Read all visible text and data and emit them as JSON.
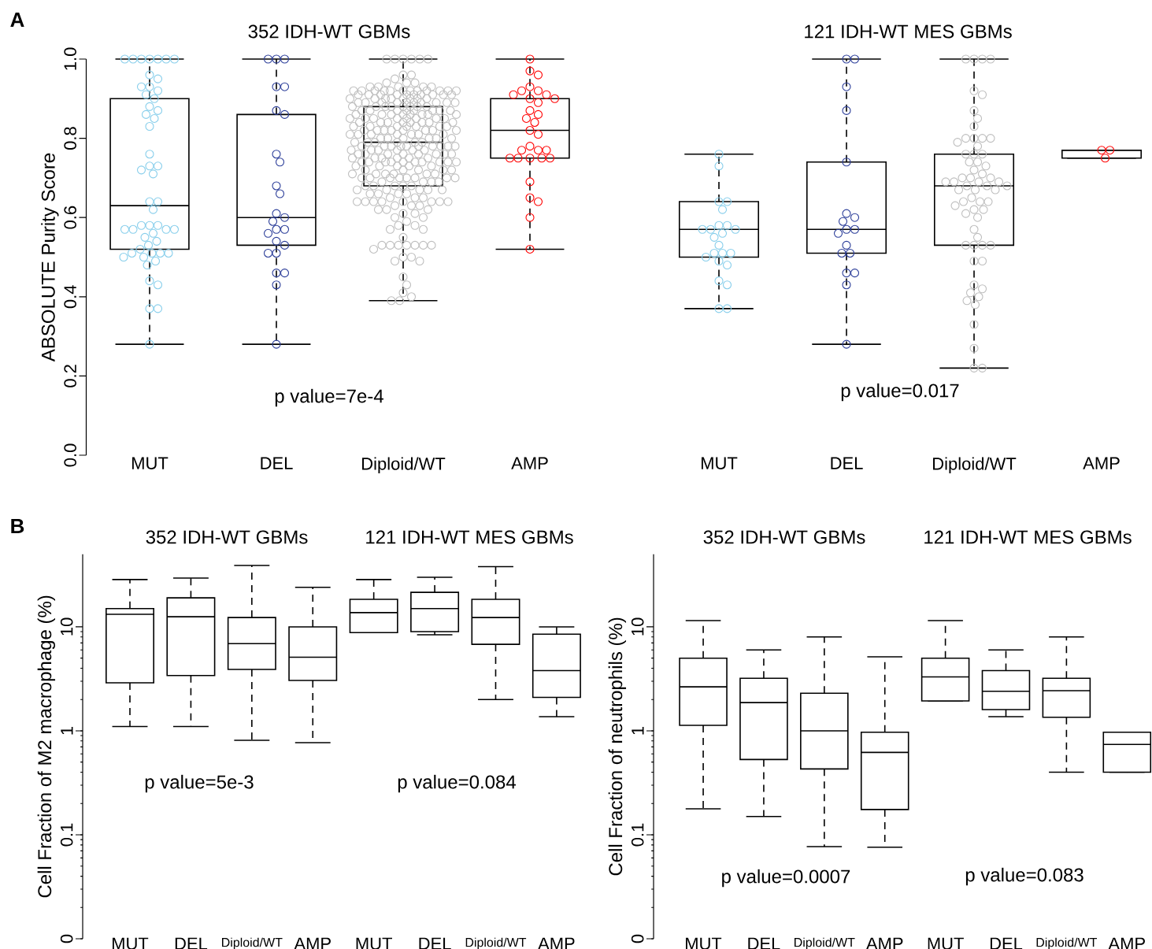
{
  "chart_data": [
    {
      "type": "box",
      "title": "352 IDH-WT GBMs",
      "ylabel": "ABSOLUTE Purity Score",
      "annotations": [
        "p value=7e-4",
        "A"
      ],
      "categories": [
        "MUT",
        "DEL",
        "Diploid/WT",
        "AMP"
      ],
      "ylim": [
        0,
        1
      ],
      "yticks": [
        {
          "value": 0,
          "label": "0.0"
        },
        0.2,
        0.4,
        0.6,
        0.8,
        {
          "value": 1,
          "label": "1.0"
        }
      ],
      "marker": "circle",
      "boxes": [
        {
          "low": 0.28,
          "q1": 0.52,
          "median": 0.63,
          "q3": 0.9,
          "high": 1
        },
        {
          "low": 0.28,
          "q1": 0.53,
          "median": 0.6,
          "q3": 0.86,
          "high": 1
        },
        {
          "low": 0.39,
          "q1": 0.68,
          "median": 0.79,
          "q3": 0.88,
          "high": 1
        },
        {
          "low": 0.52,
          "q1": 0.75,
          "median": 0.82,
          "q3": 0.9,
          "high": 1
        }
      ],
      "series": [
        {
          "type": "scatter",
          "color": "#87ceeb",
          "x": [
            "MUT",
            "MUT",
            "MUT",
            "MUT",
            "MUT",
            "MUT",
            "MUT",
            "MUT",
            "MUT",
            "MUT",
            "MUT",
            "MUT",
            "MUT",
            "MUT",
            "MUT",
            "MUT",
            "MUT",
            "MUT",
            "MUT",
            "MUT",
            "MUT",
            "MUT",
            "MUT",
            "MUT",
            "MUT",
            "MUT",
            "MUT",
            "MUT",
            "MUT",
            "MUT",
            "MUT",
            "MUT",
            "MUT",
            "MUT",
            "MUT",
            "MUT",
            "MUT",
            "MUT",
            "MUT",
            "MUT",
            "MUT",
            "MUT",
            "MUT",
            "MUT",
            "MUT",
            "MUT",
            "MUT",
            "MUT",
            "MUT",
            "MUT",
            "MUT",
            "MUT"
          ],
          "values": [
            1,
            1,
            1,
            1,
            1,
            1,
            1,
            0.96,
            0.95,
            0.93,
            0.93,
            0.92,
            0.91,
            0.9,
            0.88,
            0.87,
            0.86,
            0.85,
            0.83,
            0.76,
            0.73,
            0.73,
            0.72,
            0.71,
            0.64,
            0.64,
            0.62,
            0.58,
            0.58,
            0.58,
            0.57,
            0.57,
            0.57,
            0.57,
            0.56,
            0.55,
            0.54,
            0.53,
            0.52,
            0.51,
            0.51,
            0.51,
            0.51,
            0.5,
            0.5,
            0.49,
            0.48,
            0.44,
            0.43,
            0.37,
            0.37,
            0.28
          ]
        },
        {
          "type": "scatter",
          "color": "#2b3d99",
          "x": [
            "DEL",
            "DEL",
            "DEL",
            "DEL",
            "DEL",
            "DEL",
            "DEL",
            "DEL",
            "DEL",
            "DEL",
            "DEL",
            "DEL",
            "DEL",
            "DEL",
            "DEL",
            "DEL",
            "DEL",
            "DEL",
            "DEL",
            "DEL",
            "DEL",
            "DEL",
            "DEL",
            "DEL",
            "DEL"
          ],
          "values": [
            1,
            1,
            1,
            0.93,
            0.93,
            0.87,
            0.86,
            0.76,
            0.74,
            0.68,
            0.66,
            0.61,
            0.6,
            0.59,
            0.57,
            0.57,
            0.56,
            0.54,
            0.53,
            0.51,
            0.51,
            0.46,
            0.46,
            0.43,
            0.28
          ]
        },
        {
          "type": "scatter",
          "color": "#bebebe",
          "x": [
            "Diploid/WT",
            "Diploid/WT",
            "Diploid/WT",
            "Diploid/WT",
            "Diploid/WT",
            "Diploid/WT",
            "Diploid/WT",
            "Diploid/WT",
            "Diploid/WT",
            "Diploid/WT",
            "Diploid/WT",
            "Diploid/WT",
            "Diploid/WT",
            "Diploid/WT",
            "Diploid/WT",
            "Diploid/WT",
            "Diploid/WT",
            "Diploid/WT",
            "Diploid/WT",
            "Diploid/WT",
            "Diploid/WT",
            "Diploid/WT",
            "Diploid/WT",
            "Diploid/WT",
            "Diploid/WT",
            "Diploid/WT",
            "Diploid/WT",
            "Diploid/WT",
            "Diploid/WT",
            "Diploid/WT",
            "Diploid/WT",
            "Diploid/WT",
            "Diploid/WT",
            "Diploid/WT",
            "Diploid/WT",
            "Diploid/WT",
            "Diploid/WT",
            "Diploid/WT",
            "Diploid/WT",
            "Diploid/WT",
            "Diploid/WT",
            "Diploid/WT",
            "Diploid/WT",
            "Diploid/WT",
            "Diploid/WT",
            "Diploid/WT",
            "Diploid/WT",
            "Diploid/WT",
            "Diploid/WT",
            "Diploid/WT",
            "Diploid/WT",
            "Diploid/WT",
            "Diploid/WT",
            "Diploid/WT",
            "Diploid/WT",
            "Diploid/WT",
            "Diploid/WT",
            "Diploid/WT",
            "Diploid/WT",
            "Diploid/WT",
            "Diploid/WT",
            "Diploid/WT",
            "Diploid/WT",
            "Diploid/WT",
            "Diploid/WT",
            "Diploid/WT",
            "Diploid/WT",
            "Diploid/WT",
            "Diploid/WT",
            "Diploid/WT",
            "Diploid/WT",
            "Diploid/WT",
            "Diploid/WT",
            "Diploid/WT",
            "Diploid/WT",
            "Diploid/WT",
            "Diploid/WT",
            "Diploid/WT",
            "Diploid/WT",
            "Diploid/WT",
            "Diploid/WT",
            "Diploid/WT",
            "Diploid/WT",
            "Diploid/WT",
            "Diploid/WT",
            "Diploid/WT",
            "Diploid/WT",
            "Diploid/WT",
            "Diploid/WT",
            "Diploid/WT",
            "Diploid/WT",
            "Diploid/WT",
            "Diploid/WT",
            "Diploid/WT",
            "Diploid/WT",
            "Diploid/WT",
            "Diploid/WT",
            "Diploid/WT",
            "Diploid/WT",
            "Diploid/WT",
            "Diploid/WT",
            "Diploid/WT",
            "Diploid/WT",
            "Diploid/WT",
            "Diploid/WT",
            "Diploid/WT",
            "Diploid/WT",
            "Diploid/WT",
            "Diploid/WT",
            "Diploid/WT",
            "Diploid/WT",
            "Diploid/WT",
            "Diploid/WT",
            "Diploid/WT",
            "Diploid/WT",
            "Diploid/WT",
            "Diploid/WT",
            "Diploid/WT",
            "Diploid/WT",
            "Diploid/WT",
            "Diploid/WT",
            "Diploid/WT",
            "Diploid/WT",
            "Diploid/WT",
            "Diploid/WT",
            "Diploid/WT",
            "Diploid/WT",
            "Diploid/WT",
            "Diploid/WT",
            "Diploid/WT",
            "Diploid/WT",
            "Diploid/WT",
            "Diploid/WT",
            "Diploid/WT",
            "Diploid/WT",
            "Diploid/WT",
            "Diploid/WT",
            "Diploid/WT",
            "Diploid/WT",
            "Diploid/WT",
            "Diploid/WT",
            "Diploid/WT",
            "Diploid/WT",
            "Diploid/WT",
            "Diploid/WT",
            "Diploid/WT",
            "Diploid/WT",
            "Diploid/WT",
            "Diploid/WT",
            "Diploid/WT",
            "Diploid/WT",
            "Diploid/WT",
            "Diploid/WT",
            "Diploid/WT",
            "Diploid/WT",
            "Diploid/WT",
            "Diploid/WT",
            "Diploid/WT",
            "Diploid/WT",
            "Diploid/WT",
            "Diploid/WT",
            "Diploid/WT",
            "Diploid/WT",
            "Diploid/WT",
            "Diploid/WT",
            "Diploid/WT",
            "Diploid/WT",
            "Diploid/WT",
            "Diploid/WT",
            "Diploid/WT",
            "Diploid/WT",
            "Diploid/WT",
            "Diploid/WT",
            "Diploid/WT",
            "Diploid/WT",
            "Diploid/WT",
            "Diploid/WT",
            "Diploid/WT",
            "Diploid/WT",
            "Diploid/WT",
            "Diploid/WT",
            "Diploid/WT",
            "Diploid/WT",
            "Diploid/WT",
            "Diploid/WT",
            "Diploid/WT",
            "Diploid/WT",
            "Diploid/WT",
            "Diploid/WT",
            "Diploid/WT",
            "Diploid/WT",
            "Diploid/WT",
            "Diploid/WT",
            "Diploid/WT",
            "Diploid/WT",
            "Diploid/WT",
            "Diploid/WT",
            "Diploid/WT",
            "Diploid/WT",
            "Diploid/WT",
            "Diploid/WT",
            "Diploid/WT",
            "Diploid/WT",
            "Diploid/WT",
            "Diploid/WT",
            "Diploid/WT",
            "Diploid/WT",
            "Diploid/WT",
            "Diploid/WT",
            "Diploid/WT",
            "Diploid/WT",
            "Diploid/WT",
            "Diploid/WT",
            "Diploid/WT",
            "Diploid/WT",
            "Diploid/WT",
            "Diploid/WT",
            "Diploid/WT",
            "Diploid/WT",
            "Diploid/WT",
            "Diploid/WT",
            "Diploid/WT",
            "Diploid/WT",
            "Diploid/WT",
            "Diploid/WT",
            "Diploid/WT",
            "Diploid/WT",
            "Diploid/WT",
            "Diploid/WT",
            "Diploid/WT",
            "Diploid/WT",
            "Diploid/WT",
            "Diploid/WT",
            "Diploid/WT",
            "Diploid/WT",
            "Diploid/WT",
            "Diploid/WT",
            "Diploid/WT",
            "Diploid/WT",
            "Diploid/WT",
            "Diploid/WT",
            "Diploid/WT",
            "Diploid/WT",
            "Diploid/WT",
            "Diploid/WT",
            "Diploid/WT",
            "Diploid/WT",
            "Diploid/WT",
            "Diploid/WT",
            "Diploid/WT",
            "Diploid/WT",
            "Diploid/WT",
            "Diploid/WT",
            "Diploid/WT",
            "Diploid/WT",
            "Diploid/WT",
            "Diploid/WT",
            "Diploid/WT"
          ],
          "values": [
            1,
            1,
            1,
            1,
            1,
            1,
            0.96,
            0.96,
            0.95,
            0.94,
            0.94,
            0.94,
            0.93,
            0.93,
            0.93,
            0.93,
            0.93,
            0.92,
            0.92,
            0.92,
            0.92,
            0.92,
            0.92,
            0.92,
            0.92,
            0.92,
            0.92,
            0.92,
            0.92,
            0.91,
            0.91,
            0.91,
            0.91,
            0.91,
            0.91,
            0.91,
            0.91,
            0.91,
            0.91,
            0.9,
            0.9,
            0.9,
            0.9,
            0.9,
            0.9,
            0.9,
            0.9,
            0.89,
            0.89,
            0.89,
            0.89,
            0.89,
            0.89,
            0.89,
            0.89,
            0.89,
            0.89,
            0.88,
            0.88,
            0.88,
            0.88,
            0.88,
            0.88,
            0.88,
            0.88,
            0.87,
            0.87,
            0.87,
            0.87,
            0.87,
            0.87,
            0.87,
            0.87,
            0.86,
            0.86,
            0.86,
            0.86,
            0.86,
            0.86,
            0.86,
            0.86,
            0.85,
            0.85,
            0.85,
            0.85,
            0.85,
            0.85,
            0.85,
            0.85,
            0.84,
            0.84,
            0.84,
            0.84,
            0.84,
            0.84,
            0.84,
            0.84,
            0.83,
            0.83,
            0.83,
            0.83,
            0.83,
            0.83,
            0.83,
            0.82,
            0.82,
            0.82,
            0.82,
            0.82,
            0.82,
            0.82,
            0.82,
            0.81,
            0.81,
            0.81,
            0.81,
            0.81,
            0.81,
            0.81,
            0.8,
            0.8,
            0.8,
            0.8,
            0.8,
            0.8,
            0.79,
            0.79,
            0.79,
            0.79,
            0.79,
            0.79,
            0.78,
            0.78,
            0.78,
            0.78,
            0.78,
            0.78,
            0.78,
            0.78,
            0.78,
            0.78,
            0.77,
            0.77,
            0.77,
            0.77,
            0.77,
            0.77,
            0.76,
            0.76,
            0.76,
            0.76,
            0.76,
            0.76,
            0.76,
            0.76,
            0.75,
            0.75,
            0.75,
            0.75,
            0.75,
            0.75,
            0.74,
            0.74,
            0.74,
            0.74,
            0.74,
            0.74,
            0.74,
            0.74,
            0.74,
            0.74,
            0.73,
            0.73,
            0.73,
            0.73,
            0.73,
            0.72,
            0.72,
            0.72,
            0.72,
            0.72,
            0.71,
            0.71,
            0.71,
            0.71,
            0.71,
            0.71,
            0.7,
            0.7,
            0.7,
            0.7,
            0.7,
            0.7,
            0.7,
            0.7,
            0.69,
            0.69,
            0.69,
            0.69,
            0.68,
            0.68,
            0.68,
            0.68,
            0.68,
            0.67,
            0.67,
            0.67,
            0.67,
            0.67,
            0.66,
            0.66,
            0.66,
            0.66,
            0.65,
            0.65,
            0.65,
            0.64,
            0.64,
            0.64,
            0.64,
            0.64,
            0.64,
            0.64,
            0.64,
            0.63,
            0.63,
            0.63,
            0.62,
            0.62,
            0.62,
            0.61,
            0.61,
            0.6,
            0.6,
            0.59,
            0.58,
            0.58,
            0.57,
            0.57,
            0.55,
            0.53,
            0.53,
            0.53,
            0.53,
            0.53,
            0.53,
            0.53,
            0.52,
            0.5,
            0.5,
            0.49,
            0.49,
            0.45,
            0.43,
            0.41,
            0.4,
            0.39,
            0.39
          ]
        },
        {
          "type": "scatter",
          "color": "#ff0000",
          "x": [
            "AMP",
            "AMP",
            "AMP",
            "AMP",
            "AMP",
            "AMP",
            "AMP",
            "AMP",
            "AMP",
            "AMP",
            "AMP",
            "AMP",
            "AMP",
            "AMP",
            "AMP",
            "AMP",
            "AMP",
            "AMP",
            "AMP",
            "AMP",
            "AMP",
            "AMP",
            "AMP",
            "AMP",
            "AMP",
            "AMP",
            "AMP",
            "AMP",
            "AMP",
            "AMP",
            "AMP"
          ],
          "values": [
            1,
            0.97,
            0.96,
            0.93,
            0.92,
            0.92,
            0.91,
            0.91,
            0.9,
            0.9,
            0.89,
            0.87,
            0.86,
            0.85,
            0.84,
            0.82,
            0.81,
            0.78,
            0.77,
            0.77,
            0.77,
            0.75,
            0.75,
            0.75,
            0.75,
            0.75,
            0.69,
            0.65,
            0.64,
            0.6,
            0.52
          ]
        }
      ]
    },
    {
      "type": "box",
      "title": "121 IDH-WT  MES GBMs",
      "annotations": [
        "p value=0.017"
      ],
      "categories": [
        "MUT",
        "DEL",
        "Diploid/WT",
        "AMP"
      ],
      "ylim": [
        0,
        1
      ],
      "tick_labels": "x",
      "marker": "circle",
      "boxes": [
        {
          "low": 0.37,
          "q1": 0.5,
          "median": 0.57,
          "q3": 0.64,
          "high": 0.76
        },
        {
          "low": 0.28,
          "q1": 0.51,
          "median": 0.57,
          "q3": 0.74,
          "high": 1
        },
        {
          "low": 0.22,
          "q1": 0.53,
          "median": 0.68,
          "q3": 0.76,
          "high": 1
        },
        {
          "low": 0.75,
          "q1": 0.75,
          "median": 0.77,
          "q3": 0.77,
          "high": 0.77
        }
      ],
      "series": [
        {
          "type": "scatter",
          "color": "#87ceeb",
          "x": [
            "MUT",
            "MUT",
            "MUT",
            "MUT",
            "MUT",
            "MUT",
            "MUT",
            "MUT",
            "MUT",
            "MUT",
            "MUT",
            "MUT",
            "MUT",
            "MUT",
            "MUT",
            "MUT",
            "MUT",
            "MUT",
            "MUT",
            "MUT",
            "MUT",
            "MUT",
            "MUT"
          ],
          "values": [
            0.76,
            0.73,
            0.64,
            0.64,
            0.62,
            0.58,
            0.58,
            0.57,
            0.57,
            0.57,
            0.56,
            0.55,
            0.53,
            0.51,
            0.51,
            0.51,
            0.5,
            0.49,
            0.48,
            0.44,
            0.43,
            0.37,
            0.37
          ]
        },
        {
          "type": "scatter",
          "color": "#2b3d99",
          "x": [
            "DEL",
            "DEL",
            "DEL",
            "DEL",
            "DEL",
            "DEL",
            "DEL",
            "DEL",
            "DEL",
            "DEL",
            "DEL",
            "DEL",
            "DEL",
            "DEL",
            "DEL",
            "DEL",
            "DEL",
            "DEL"
          ],
          "values": [
            1,
            1,
            0.93,
            0.87,
            0.74,
            0.61,
            0.6,
            0.59,
            0.57,
            0.57,
            0.56,
            0.53,
            0.51,
            0.51,
            0.46,
            0.46,
            0.43,
            0.28
          ]
        },
        {
          "type": "scatter",
          "color": "#bebebe",
          "x": [
            "Diploid/WT",
            "Diploid/WT",
            "Diploid/WT",
            "Diploid/WT",
            "Diploid/WT",
            "Diploid/WT",
            "Diploid/WT",
            "Diploid/WT",
            "Diploid/WT",
            "Diploid/WT",
            "Diploid/WT",
            "Diploid/WT",
            "Diploid/WT",
            "Diploid/WT",
            "Diploid/WT",
            "Diploid/WT",
            "Diploid/WT",
            "Diploid/WT",
            "Diploid/WT",
            "Diploid/WT",
            "Diploid/WT",
            "Diploid/WT",
            "Diploid/WT",
            "Diploid/WT",
            "Diploid/WT",
            "Diploid/WT",
            "Diploid/WT",
            "Diploid/WT",
            "Diploid/WT",
            "Diploid/WT",
            "Diploid/WT",
            "Diploid/WT",
            "Diploid/WT",
            "Diploid/WT",
            "Diploid/WT",
            "Diploid/WT",
            "Diploid/WT",
            "Diploid/WT",
            "Diploid/WT",
            "Diploid/WT",
            "Diploid/WT",
            "Diploid/WT",
            "Diploid/WT",
            "Diploid/WT",
            "Diploid/WT",
            "Diploid/WT",
            "Diploid/WT",
            "Diploid/WT",
            "Diploid/WT",
            "Diploid/WT",
            "Diploid/WT",
            "Diploid/WT",
            "Diploid/WT",
            "Diploid/WT",
            "Diploid/WT",
            "Diploid/WT",
            "Diploid/WT",
            "Diploid/WT",
            "Diploid/WT",
            "Diploid/WT",
            "Diploid/WT",
            "Diploid/WT",
            "Diploid/WT"
          ],
          "values": [
            1,
            1,
            1,
            1,
            0.92,
            0.91,
            0.87,
            0.85,
            0.83,
            0.8,
            0.8,
            0.8,
            0.8,
            0.79,
            0.78,
            0.76,
            0.76,
            0.76,
            0.74,
            0.74,
            0.73,
            0.72,
            0.71,
            0.7,
            0.7,
            0.7,
            0.69,
            0.69,
            0.69,
            0.69,
            0.68,
            0.68,
            0.68,
            0.67,
            0.67,
            0.67,
            0.65,
            0.64,
            0.64,
            0.64,
            0.63,
            0.62,
            0.62,
            0.61,
            0.6,
            0.57,
            0.55,
            0.53,
            0.53,
            0.53,
            0.53,
            0.49,
            0.49,
            0.43,
            0.42,
            0.41,
            0.4,
            0.39,
            0.38,
            0.33,
            0.27,
            0.22,
            0.22
          ]
        },
        {
          "type": "scatter",
          "color": "#ff0000",
          "x": [
            "AMP",
            "AMP",
            "AMP"
          ],
          "values": [
            0.77,
            0.77,
            0.75
          ]
        }
      ]
    },
    {
      "type": "box",
      "title": "352 IDH-WT GBMs",
      "ylabel": "Cell Fraction of M2 macrophage (%)",
      "annotations": [
        "p value=5e-3",
        "B",
        "121 IDH-WT  MES GBMs",
        "p value=0.084"
      ],
      "categories": [
        "MUT",
        "DEL",
        "Diploid/WT",
        "AMP",
        "MUT",
        "DEL",
        "Diploid/WT",
        "AMP"
      ],
      "log": "y",
      "ylim": [
        0.01,
        50
      ],
      "yticks": [
        {
          "value": 0.01,
          "label": "0"
        },
        0.1,
        1,
        10
      ],
      "boxes": [
        {
          "low": 1.1,
          "q1": 2.9,
          "median": 13.2,
          "q3": 15,
          "high": 28.5
        },
        {
          "low": 1.1,
          "q1": 3.4,
          "median": 12.5,
          "q3": 19,
          "high": 29.5
        },
        {
          "low": 0.81,
          "q1": 3.9,
          "median": 6.9,
          "q3": 12.3,
          "high": 39
        },
        {
          "low": 0.77,
          "q1": 3.05,
          "median": 5.1,
          "q3": 10,
          "high": 24
        },
        {
          "low": 8.8,
          "q1": 8.8,
          "median": 13.7,
          "q3": 18.4,
          "high": 28.5
        },
        {
          "low": 8.4,
          "q1": 9,
          "median": 15,
          "q3": 21.5,
          "high": 30
        },
        {
          "low": 2,
          "q1": 6.8,
          "median": 12.3,
          "q3": 18.4,
          "high": 38
        },
        {
          "low": 1.37,
          "q1": 2.1,
          "median": 3.8,
          "q3": 8.5,
          "high": 10
        }
      ]
    },
    {
      "type": "box",
      "title": "352 IDH-WT GBMs",
      "ylabel": "Cell Fraction of neutrophils (%)",
      "annotations": [
        "p value=0.0007",
        "121 IDH-WT  MES GBMs",
        "p value=0.083"
      ],
      "categories": [
        "MUT",
        "DEL",
        "Diploid/WT",
        "AMP",
        "MUT",
        "DEL",
        "Diploid/WT",
        "AMP"
      ],
      "log": "y",
      "ylim": [
        0.01,
        50
      ],
      "yticks": [
        {
          "value": 0.01,
          "label": "0"
        },
        0.1,
        1,
        10
      ],
      "boxes": [
        {
          "low": 0.178,
          "q1": 1.13,
          "median": 2.65,
          "q3": 5,
          "high": 11.5
        },
        {
          "low": 0.15,
          "q1": 0.53,
          "median": 1.87,
          "q3": 3.2,
          "high": 6
        },
        {
          "low": 0.077,
          "q1": 0.43,
          "median": 1,
          "q3": 2.3,
          "high": 8
        },
        {
          "low": 0.076,
          "q1": 0.175,
          "median": 0.62,
          "q3": 0.97,
          "high": 5.15
        },
        {
          "low": 1.94,
          "q1": 1.94,
          "median": 3.3,
          "q3": 5,
          "high": 11.5
        },
        {
          "low": 1.37,
          "q1": 1.6,
          "median": 2.4,
          "q3": 3.8,
          "high": 6
        },
        {
          "low": 0.4,
          "q1": 1.35,
          "median": 2.43,
          "q3": 3.2,
          "high": 8
        },
        {
          "low": 0.4,
          "q1": 0.4,
          "median": 0.74,
          "q3": 0.97,
          "high": 0.97
        }
      ]
    }
  ]
}
